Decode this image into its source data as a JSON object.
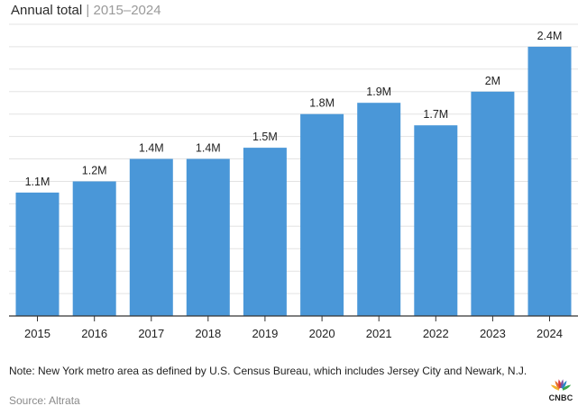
{
  "header": {
    "title": "Annual total",
    "separator": "|",
    "subtitle": "2015–2024"
  },
  "chart_data": {
    "type": "bar",
    "title": "Annual total",
    "subtitle": "2015–2024",
    "categories": [
      "2015",
      "2016",
      "2017",
      "2018",
      "2019",
      "2020",
      "2021",
      "2022",
      "2023",
      "2024"
    ],
    "values": [
      1.1,
      1.2,
      1.4,
      1.4,
      1.5,
      1.8,
      1.9,
      1.7,
      2.0,
      2.4
    ],
    "data_labels": [
      "1.1M",
      "1.2M",
      "1.4M",
      "1.4M",
      "1.5M",
      "1.8M",
      "1.9M",
      "1.7M",
      "2M",
      "2.4M"
    ],
    "unit": "M",
    "ylim": [
      0,
      2.6
    ],
    "grid": true,
    "y_axis_labels_shown": false,
    "bar_color": "#4a97d8",
    "gridline_color": "#e3e3e3",
    "axis_color": "#333333"
  },
  "footer": {
    "note": "Note: New York metro area as defined by U.S. Census Bureau, which includes Jersey City and Newark, N.J.",
    "source": "Source: Altrata"
  },
  "logo": {
    "text": "CNBC",
    "icon": "cnbc-peacock-icon",
    "colors": [
      "#f2b22e",
      "#e8722c",
      "#d9343b",
      "#7d4f9e",
      "#2d86c6",
      "#3aa54a"
    ]
  }
}
